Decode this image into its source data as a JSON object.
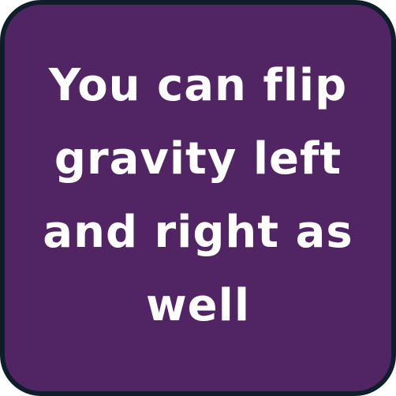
{
  "tip_card": {
    "text": "You can flip gravity left and right as well",
    "background_color": "#512463",
    "border_color": "#0f1e2b",
    "text_color": "#ffffff"
  }
}
